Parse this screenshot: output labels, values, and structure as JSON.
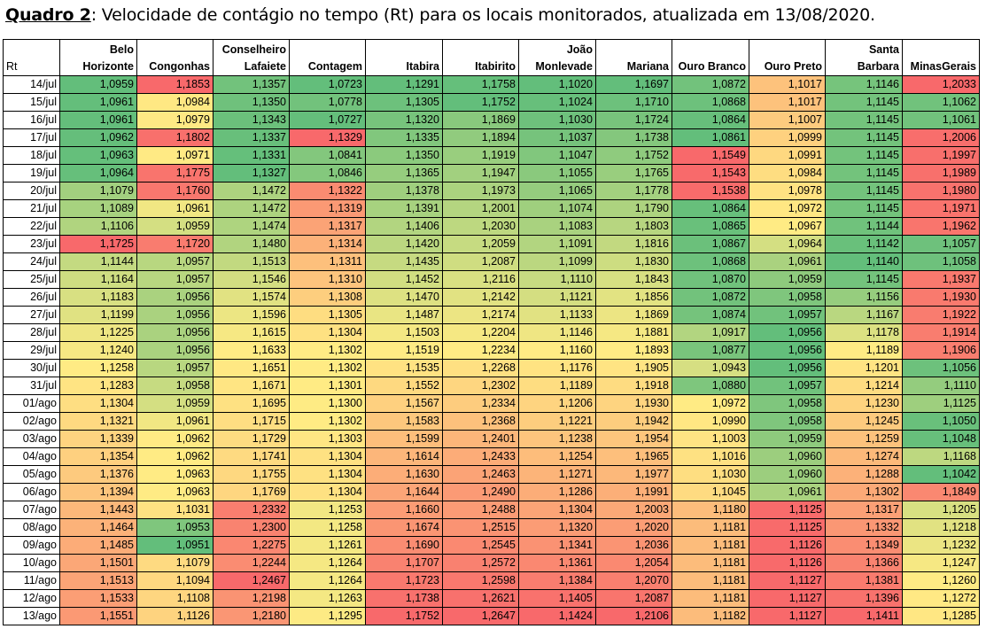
{
  "caption": {
    "label": "Quadro 2",
    "text": ": Velocidade de contágio no tempo (Rt) para os locais monitorados,  atualizada em 13/08/2020."
  },
  "table": {
    "corner": "Rt",
    "columns": [
      "Belo Horizonte",
      "Congonhas",
      "Conselheiro Lafaiete",
      "Contagem",
      "Itabira",
      "Itabirito",
      "João Monlevade",
      "Mariana",
      "Ouro Branco",
      "Ouro Preto",
      "Santa Barbara",
      "MinasGerais"
    ],
    "rows": [
      {
        "date": "14/jul",
        "values": [
          "1,0959",
          "1,1853",
          "1,1357",
          "1,0723",
          "1,1291",
          "1,1758",
          "1,1020",
          "1,1697",
          "1,0872",
          "1,1017",
          "1,1146",
          "1,2033"
        ]
      },
      {
        "date": "15/jul",
        "values": [
          "1,0961",
          "1,0984",
          "1,1350",
          "1,0778",
          "1,1305",
          "1,1752",
          "1,1024",
          "1,1710",
          "1,0868",
          "1,1017",
          "1,1145",
          "1,1062"
        ]
      },
      {
        "date": "16/jul",
        "values": [
          "1,0961",
          "1,0979",
          "1,1343",
          "1,0727",
          "1,1320",
          "1,1869",
          "1,1030",
          "1,1724",
          "1,0864",
          "1,1007",
          "1,1145",
          "1,1061"
        ]
      },
      {
        "date": "17/jul",
        "values": [
          "1,0962",
          "1,1802",
          "1,1337",
          "1,1329",
          "1,1335",
          "1,1894",
          "1,1037",
          "1,1738",
          "1,0861",
          "1,0999",
          "1,1145",
          "1,2006"
        ]
      },
      {
        "date": "18/jul",
        "values": [
          "1,0963",
          "1,0971",
          "1,1331",
          "1,0841",
          "1,1350",
          "1,1919",
          "1,1047",
          "1,1752",
          "1,1549",
          "1,0991",
          "1,1145",
          "1,1997"
        ]
      },
      {
        "date": "19/jul",
        "values": [
          "1,0964",
          "1,1775",
          "1,1327",
          "1,0846",
          "1,1365",
          "1,1947",
          "1,1055",
          "1,1765",
          "1,1543",
          "1,0984",
          "1,1145",
          "1,1989"
        ]
      },
      {
        "date": "20/jul",
        "values": [
          "1,1079",
          "1,1760",
          "1,1472",
          "1,1322",
          "1,1378",
          "1,1973",
          "1,1065",
          "1,1778",
          "1,1538",
          "1,0978",
          "1,1145",
          "1,1980"
        ]
      },
      {
        "date": "21/jul",
        "values": [
          "1,1089",
          "1,0961",
          "1,1472",
          "1,1319",
          "1,1391",
          "1,2001",
          "1,1074",
          "1,1790",
          "1,0864",
          "1,0972",
          "1,1145",
          "1,1971"
        ]
      },
      {
        "date": "22/jul",
        "values": [
          "1,1106",
          "1,0959",
          "1,1474",
          "1,1317",
          "1,1406",
          "1,2030",
          "1,1083",
          "1,1803",
          "1,0865",
          "1,0967",
          "1,1144",
          "1,1962"
        ]
      },
      {
        "date": "23/jul",
        "values": [
          "1,1725",
          "1,1720",
          "1,1480",
          "1,1314",
          "1,1420",
          "1,2059",
          "1,1091",
          "1,1816",
          "1,0867",
          "1,0964",
          "1,1142",
          "1,1057"
        ]
      },
      {
        "date": "24/jul",
        "values": [
          "1,1144",
          "1,0957",
          "1,1513",
          "1,1311",
          "1,1435",
          "1,2087",
          "1,1099",
          "1,1830",
          "1,0868",
          "1,0961",
          "1,1140",
          "1,1058"
        ]
      },
      {
        "date": "25/jul",
        "values": [
          "1,1164",
          "1,0957",
          "1,1546",
          "1,1310",
          "1,1452",
          "1,2116",
          "1,1110",
          "1,1843",
          "1,0870",
          "1,0959",
          "1,1145",
          "1,1937"
        ]
      },
      {
        "date": "26/jul",
        "values": [
          "1,1183",
          "1,0956",
          "1,1574",
          "1,1308",
          "1,1470",
          "1,2142",
          "1,1121",
          "1,1856",
          "1,0872",
          "1,0958",
          "1,1156",
          "1,1930"
        ]
      },
      {
        "date": "27/jul",
        "values": [
          "1,1199",
          "1,0956",
          "1,1596",
          "1,1305",
          "1,1487",
          "1,2174",
          "1,1133",
          "1,1869",
          "1,0874",
          "1,0957",
          "1,1167",
          "1,1922"
        ]
      },
      {
        "date": "28/jul",
        "values": [
          "1,1225",
          "1,0956",
          "1,1615",
          "1,1304",
          "1,1503",
          "1,2204",
          "1,1146",
          "1,1881",
          "1,0917",
          "1,0956",
          "1,1178",
          "1,1914"
        ]
      },
      {
        "date": "29/jul",
        "values": [
          "1,1240",
          "1,0956",
          "1,1633",
          "1,1302",
          "1,1519",
          "1,2234",
          "1,1160",
          "1,1893",
          "1,0877",
          "1,0956",
          "1,1189",
          "1,1906"
        ]
      },
      {
        "date": "30/jul",
        "values": [
          "1,1258",
          "1,0957",
          "1,1651",
          "1,1302",
          "1,1535",
          "1,2268",
          "1,1176",
          "1,1905",
          "1,0943",
          "1,0956",
          "1,1201",
          "1,1056"
        ]
      },
      {
        "date": "31/jul",
        "values": [
          "1,1283",
          "1,0958",
          "1,1671",
          "1,1301",
          "1,1552",
          "1,2302",
          "1,1189",
          "1,1918",
          "1,0880",
          "1,0957",
          "1,1214",
          "1,1110"
        ]
      },
      {
        "date": "01/ago",
        "values": [
          "1,1304",
          "1,0959",
          "1,1695",
          "1,1300",
          "1,1567",
          "1,2334",
          "1,1206",
          "1,1930",
          "1,0972",
          "1,0958",
          "1,1230",
          "1,1125"
        ]
      },
      {
        "date": "02/ago",
        "values": [
          "1,1321",
          "1,0961",
          "1,1715",
          "1,1302",
          "1,1583",
          "1,2368",
          "1,1221",
          "1,1942",
          "1,0990",
          "1,0958",
          "1,1245",
          "1,1050"
        ]
      },
      {
        "date": "03/ago",
        "values": [
          "1,1339",
          "1,0962",
          "1,1729",
          "1,1303",
          "1,1599",
          "1,2401",
          "1,1238",
          "1,1954",
          "1,1003",
          "1,0959",
          "1,1259",
          "1,1048"
        ]
      },
      {
        "date": "04/ago",
        "values": [
          "1,1354",
          "1,0962",
          "1,1741",
          "1,1304",
          "1,1614",
          "1,2433",
          "1,1254",
          "1,1965",
          "1,1016",
          "1,0960",
          "1,1274",
          "1,1168"
        ]
      },
      {
        "date": "05/ago",
        "values": [
          "1,1376",
          "1,0963",
          "1,1755",
          "1,1304",
          "1,1630",
          "1,2463",
          "1,1271",
          "1,1977",
          "1,1030",
          "1,0960",
          "1,1288",
          "1,1042"
        ]
      },
      {
        "date": "06/ago",
        "values": [
          "1,1394",
          "1,0963",
          "1,1769",
          "1,1304",
          "1,1644",
          "1,2490",
          "1,1286",
          "1,1991",
          "1,1045",
          "1,0961",
          "1,1302",
          "1,1849"
        ]
      },
      {
        "date": "07/ago",
        "values": [
          "1,1443",
          "1,1031",
          "1,2332",
          "1,1253",
          "1,1660",
          "1,2488",
          "1,1304",
          "1,2003",
          "1,1180",
          "1,1125",
          "1,1317",
          "1,1205"
        ]
      },
      {
        "date": "08/ago",
        "values": [
          "1,1464",
          "1,0953",
          "1,2300",
          "1,1258",
          "1,1674",
          "1,2515",
          "1,1320",
          "1,2020",
          "1,1181",
          "1,1125",
          "1,1332",
          "1,1218"
        ]
      },
      {
        "date": "09/ago",
        "values": [
          "1,1485",
          "1,0951",
          "1,2275",
          "1,1261",
          "1,1690",
          "1,2545",
          "1,1341",
          "1,2036",
          "1,1181",
          "1,1126",
          "1,1349",
          "1,1232"
        ]
      },
      {
        "date": "10/ago",
        "values": [
          "1,1501",
          "1,1079",
          "1,2244",
          "1,1264",
          "1,1707",
          "1,2572",
          "1,1361",
          "1,2054",
          "1,1181",
          "1,1126",
          "1,1366",
          "1,1247"
        ]
      },
      {
        "date": "11/ago",
        "values": [
          "1,1513",
          "1,1094",
          "1,2467",
          "1,1264",
          "1,1723",
          "1,2598",
          "1,1384",
          "1,2070",
          "1,1181",
          "1,1127",
          "1,1381",
          "1,1260"
        ]
      },
      {
        "date": "12/ago",
        "values": [
          "1,1533",
          "1,1108",
          "1,2198",
          "1,1263",
          "1,1738",
          "1,2621",
          "1,1405",
          "1,2087",
          "1,1181",
          "1,1127",
          "1,1396",
          "1,1272"
        ]
      },
      {
        "date": "13/ago",
        "values": [
          "1,1551",
          "1,1126",
          "1,2180",
          "1,1295",
          "1,1752",
          "1,2647",
          "1,1424",
          "1,2106",
          "1,1182",
          "1,1127",
          "1,1411",
          "1,1285"
        ]
      }
    ]
  },
  "colors": {
    "scale_low": "#63BE7B",
    "scale_mid": "#FFEB84",
    "scale_high": "#F8696B",
    "border": "#000000"
  }
}
